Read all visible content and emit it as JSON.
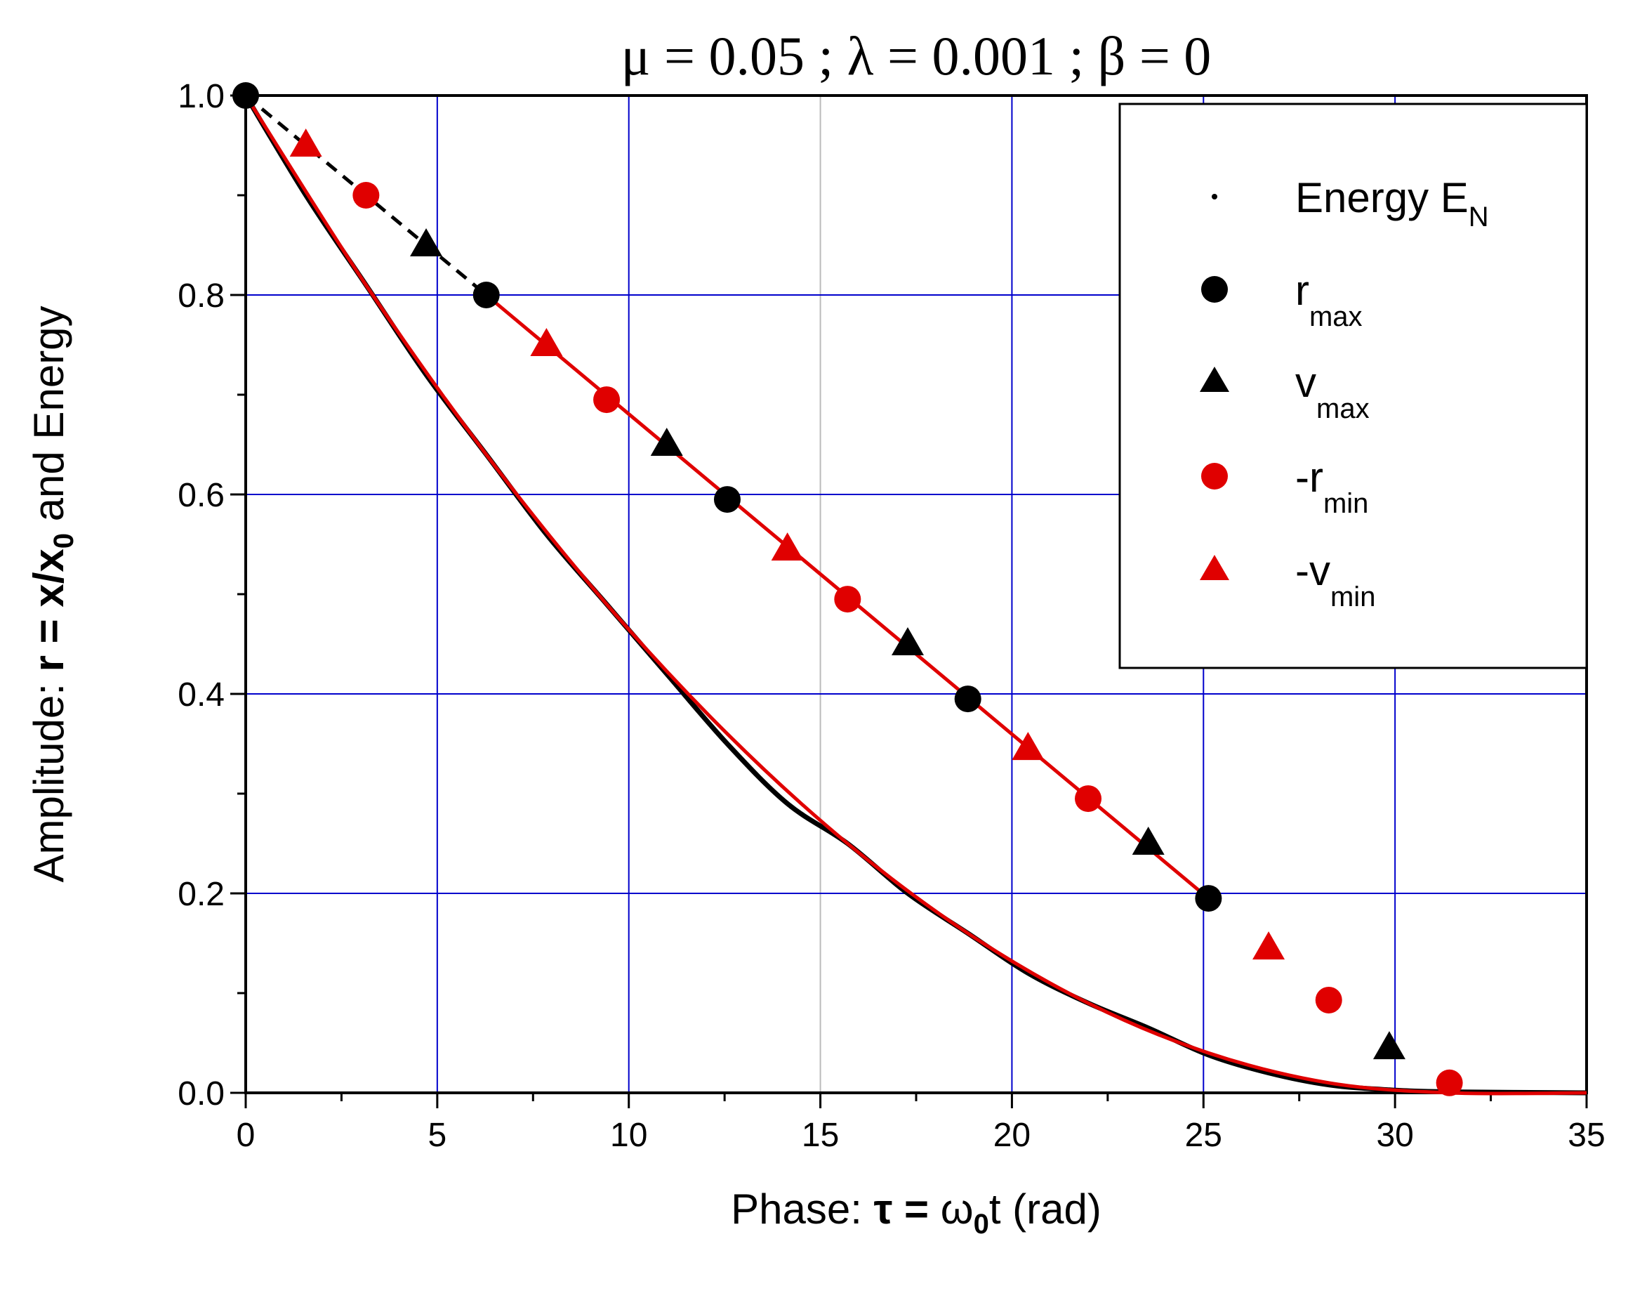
{
  "chart_data": {
    "type": "line",
    "title": "μ = 0.05 ; λ = 0.001 ; β = 0",
    "xlabel": {
      "prefix": "Phase: ",
      "tau_eq": "τ = ",
      "omega": "ω",
      "omega_sub": "0",
      "rest": "t   (rad)"
    },
    "ylabel": {
      "prefix": "Amplitude: ",
      "r_eq": "r = x/x",
      "r_sub": "0",
      "rest": "  and Energy"
    },
    "xlim": [
      0,
      35
    ],
    "ylim": [
      0,
      1.0
    ],
    "x_ticks": [
      0,
      5,
      10,
      15,
      20,
      25,
      30,
      35
    ],
    "x_tick_labels": [
      "0",
      "5",
      "10",
      "15",
      "20",
      "25",
      "30",
      "35"
    ],
    "y_ticks": [
      0,
      0.2,
      0.4,
      0.6,
      0.8,
      1.0
    ],
    "y_tick_labels": [
      "0.0",
      "0.2",
      "0.4",
      "0.6",
      "0.8",
      "1.0"
    ],
    "grid": true,
    "legend_position": "top-right",
    "legend": [
      {
        "key": "energy",
        "label": "Energy E",
        "sub": "N"
      },
      {
        "key": "rmax",
        "label": "r",
        "sub": "max"
      },
      {
        "key": "vmax",
        "label": "v",
        "sub": "max"
      },
      {
        "key": "rmin",
        "label": "-r",
        "sub": "min"
      },
      {
        "key": "vmin",
        "label": "-v",
        "sub": "min"
      }
    ],
    "colors": {
      "black": "#000000",
      "red": "#e00000",
      "grid": "#0000cc",
      "grid_highlight": "#bbbbbb"
    },
    "series": [
      {
        "name": "r_max",
        "marker": "circle",
        "color": "#000000",
        "x": [
          0,
          6.28,
          12.57,
          18.85,
          25.13
        ],
        "y": [
          1.0,
          0.8,
          0.595,
          0.395,
          0.195
        ]
      },
      {
        "name": "v_max",
        "marker": "triangle",
        "color": "#000000",
        "x": [
          4.71,
          10.99,
          17.28,
          23.56,
          29.85
        ],
        "y": [
          0.85,
          0.65,
          0.45,
          0.25,
          0.045
        ]
      },
      {
        "name": "-r_min",
        "marker": "circle",
        "color": "#e00000",
        "x": [
          3.14,
          9.42,
          15.71,
          21.99,
          28.27,
          31.42
        ],
        "y": [
          0.9,
          0.695,
          0.495,
          0.295,
          0.093,
          0.01
        ]
      },
      {
        "name": "-v_min",
        "marker": "triangle",
        "color": "#e00000",
        "x": [
          1.57,
          7.85,
          14.14,
          20.42,
          26.7
        ],
        "y": [
          0.95,
          0.75,
          0.545,
          0.345,
          0.145
        ]
      },
      {
        "name": "energy_EN",
        "style": "solid",
        "color": "#000000",
        "x": [
          0,
          1.57,
          3.14,
          4.71,
          6.28,
          7.85,
          9.42,
          10.99,
          12.57,
          14.14,
          15.71,
          17.28,
          18.85,
          20.42,
          21.99,
          23.56,
          25.13,
          26.7,
          28.27,
          29.85,
          31.42,
          35
        ],
        "y": [
          1.0,
          0.9,
          0.81,
          0.72,
          0.64,
          0.56,
          0.49,
          0.42,
          0.35,
          0.29,
          0.25,
          0.2,
          0.16,
          0.12,
          0.09,
          0.065,
          0.038,
          0.02,
          0.008,
          0.003,
          0.001,
          0.0
        ]
      },
      {
        "name": "fit_r_pos",
        "style": "solid",
        "color": "#e00000",
        "x": [
          6.28,
          25.13
        ],
        "y": [
          0.8,
          0.195
        ]
      },
      {
        "name": "fit_r_pos_start",
        "style": "dashed",
        "color": "#000000",
        "x": [
          0,
          6.28
        ],
        "y": [
          1.0,
          0.8
        ]
      },
      {
        "name": "fit_energy",
        "style": "solid",
        "color": "#e00000",
        "x": [
          0,
          3.14,
          6.28,
          9.42,
          12.57,
          15.71,
          18.85,
          21.99,
          25.13,
          28.27,
          31.42,
          35
        ],
        "y": [
          1.0,
          0.81,
          0.64,
          0.49,
          0.36,
          0.25,
          0.16,
          0.09,
          0.04,
          0.01,
          0.0,
          0.0
        ]
      }
    ]
  }
}
